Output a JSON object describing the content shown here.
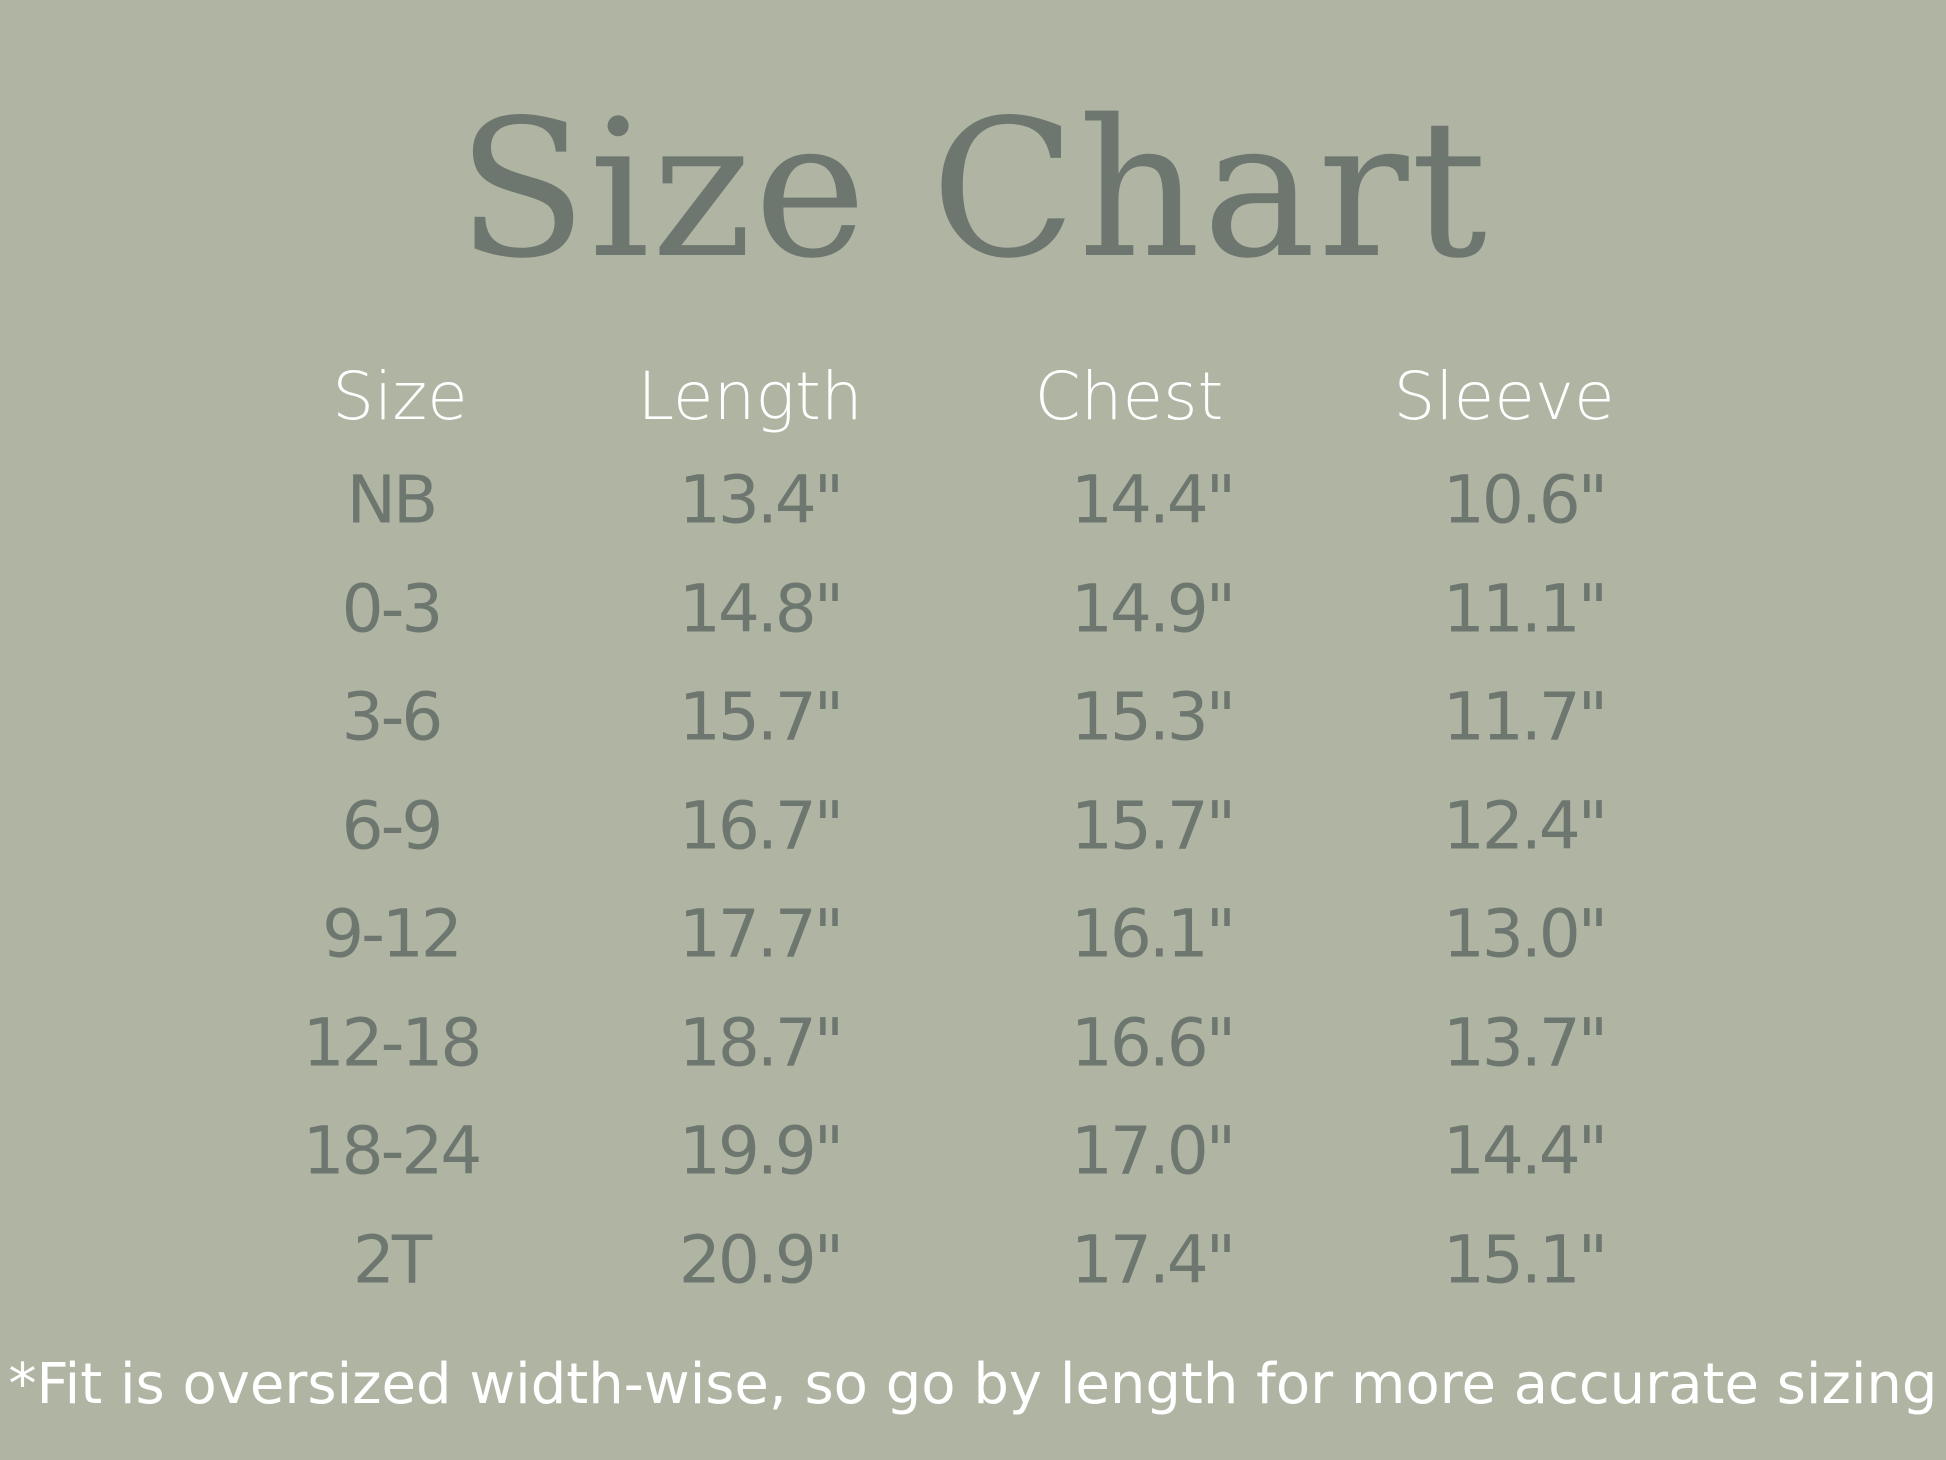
{
  "title": "Size Chart",
  "colors": {
    "background": "#b0b4a2",
    "title": "#6d7770",
    "header": "#ffffff",
    "values": "#6d7770"
  },
  "table": {
    "headers": [
      "Size",
      "Length",
      "Chest",
      "Sleeve"
    ],
    "rows": [
      [
        "NB",
        "13.4\"",
        "14.4\"",
        "10.6\""
      ],
      [
        "0-3",
        "14.8\"",
        "14.9\"",
        "11.1\""
      ],
      [
        "3-6",
        "15.7\"",
        "15.3\"",
        "11.7\""
      ],
      [
        "6-9",
        "16.7\"",
        "15.7\"",
        "12.4\""
      ],
      [
        "9-12",
        "17.7\"",
        "16.1\"",
        "13.0\""
      ],
      [
        "12-18",
        "18.7\"",
        "16.6\"",
        "13.7\""
      ],
      [
        "18-24",
        "19.9\"",
        "17.0\"",
        "14.4\""
      ],
      [
        "2T",
        "20.9\"",
        "17.4\"",
        "15.1\""
      ]
    ]
  },
  "footnote": "*Fit is oversized width-wise, so go by length for more accurate sizing"
}
